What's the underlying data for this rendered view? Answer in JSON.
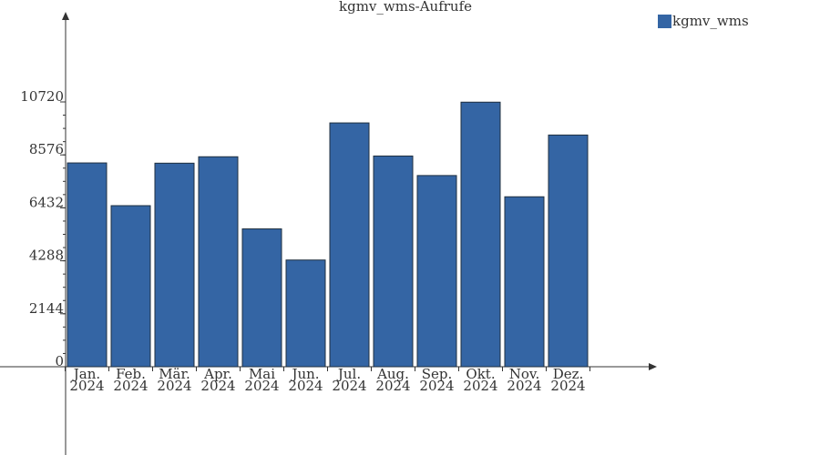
{
  "chart_data": {
    "type": "bar",
    "title": "kgmv_wms-Aufrufe",
    "categories": [
      [
        "Jan.",
        "2024"
      ],
      [
        "Feb.",
        "2024"
      ],
      [
        "Mär.",
        "2024"
      ],
      [
        "Apr.",
        "2024"
      ],
      [
        "Mai",
        "2024"
      ],
      [
        "Jun.",
        "2024"
      ],
      [
        "Jul.",
        "2024"
      ],
      [
        "Aug.",
        "2024"
      ],
      [
        "Sep.",
        "2024"
      ],
      [
        "Okt.",
        "2024"
      ],
      [
        "Nov.",
        "2024"
      ],
      [
        "Dez.",
        "2024"
      ]
    ],
    "series": [
      {
        "name": "kgmv_wms",
        "color": "#3465a4",
        "values": [
          8250,
          6520,
          8240,
          8500,
          5580,
          4320,
          9870,
          8530,
          7740,
          10710,
          6880,
          9380
        ]
      }
    ],
    "yticks": [
      0,
      2144,
      4288,
      6432,
      8576,
      10720
    ],
    "ylim": [
      0,
      10720
    ],
    "legend_position": "top-right",
    "grid": false
  }
}
